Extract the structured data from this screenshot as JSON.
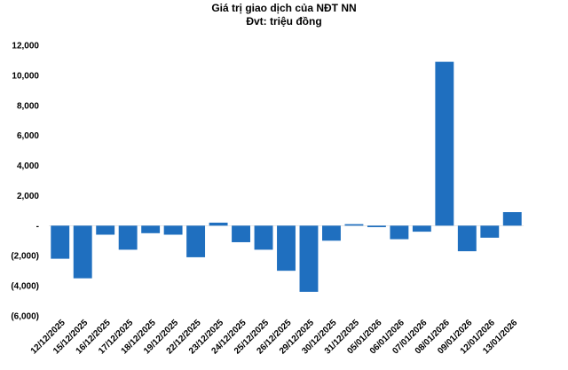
{
  "chart_data": {
    "type": "bar",
    "title": "Giá trị giao dịch của NĐT NN",
    "subtitle": "Đvt: triệu đồng",
    "xlabel": "",
    "ylabel": "",
    "ylim": [
      -6000,
      12000
    ],
    "yticks": [
      12000,
      10000,
      8000,
      6000,
      4000,
      2000,
      0,
      -2000,
      -4000,
      -6000
    ],
    "ytick_labels": [
      "12,000",
      "10,000",
      "8,000",
      "6,000",
      "4,000",
      "2,000",
      "-",
      "(2,000)",
      "(4,000)",
      "(6,000)"
    ],
    "grid": false,
    "color": "#1f6fbf",
    "categories": [
      "12/12/2025",
      "15/12/2025",
      "16/12/2025",
      "17/12/2025",
      "18/12/2025",
      "19/12/2025",
      "22/12/2025",
      "23/12/2025",
      "24/12/2025",
      "25/12/2025",
      "26/12/2025",
      "29/12/2025",
      "30/12/2025",
      "31/12/2025",
      "05/01/2026",
      "06/01/2026",
      "07/01/2026",
      "08/01/2026",
      "09/01/2026",
      "12/01/2026",
      "13/01/2026"
    ],
    "values": [
      -2200,
      -3500,
      -600,
      -1600,
      -500,
      -600,
      -2100,
      200,
      -1100,
      -1600,
      -3000,
      -4400,
      -1000,
      100,
      -100,
      -900,
      -400,
      10900,
      -1700,
      -800,
      900
    ]
  }
}
